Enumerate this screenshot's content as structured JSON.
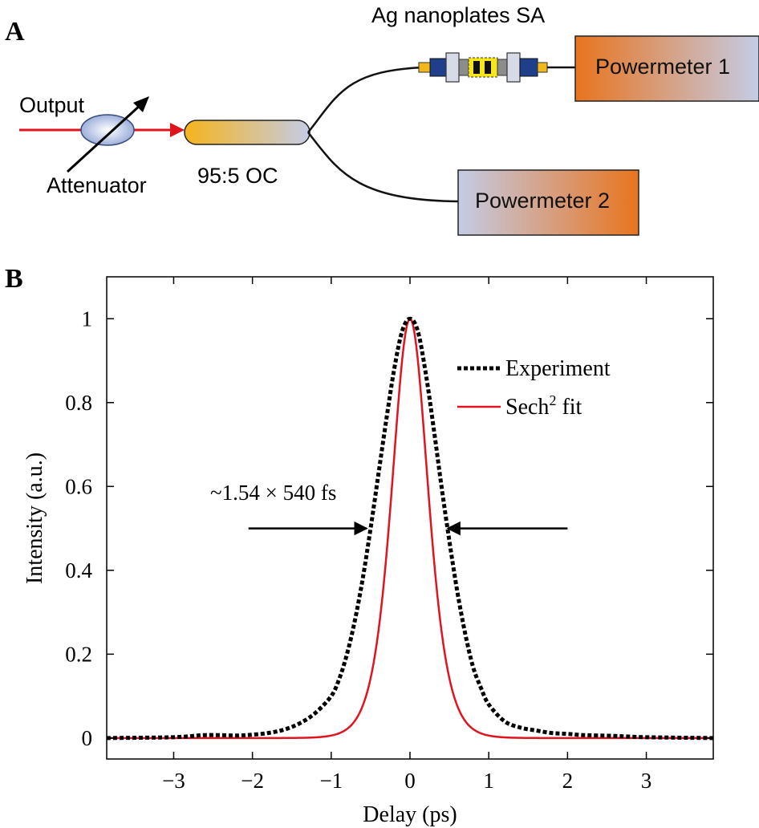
{
  "panel_a": {
    "letter": "A",
    "output_label": "Output",
    "attenuator_label": "Attenuator",
    "coupler_label": "95:5 OC",
    "sa_label": "Ag nanoplates SA",
    "powermeter1_label": "Powermeter 1",
    "powermeter2_label": "Powermeter 2",
    "colors": {
      "laser_line": "#e0141e",
      "fiber": "#111111",
      "orange": "#e8741e",
      "lavender": "#c4cce6",
      "coupler_gold": "#f6b41c"
    }
  },
  "panel_b": {
    "letter": "B"
  },
  "chart_data": {
    "type": "line",
    "xlabel": "Delay (ps)",
    "ylabel": "Intensity (a.u.)",
    "xlim": [
      -3.85,
      3.85
    ],
    "ylim": [
      -0.05,
      1.1
    ],
    "xticks": [
      -3,
      -2,
      -1,
      0,
      1,
      2,
      3
    ],
    "xtick_labels": [
      "−3",
      "−2",
      "−1",
      "0",
      "1",
      "2",
      "3"
    ],
    "yticks": [
      0,
      0.2,
      0.4,
      0.6,
      0.8,
      1
    ],
    "ytick_labels": [
      "0",
      "0.2",
      "0.4",
      "0.6",
      "0.8",
      "1"
    ],
    "legend_position": "top-right",
    "grid": false,
    "annotation": {
      "text": "~1.54 × 540 fs",
      "arrow_y": 0.5,
      "left_arrow_x": [
        -2.05,
        -0.55
      ],
      "right_arrow_x": [
        2.0,
        0.48
      ]
    },
    "series": [
      {
        "name": "Experiment",
        "style": "dotted",
        "color": "#000000",
        "x": [
          -3.85,
          -3.0,
          -2.6,
          -2.2,
          -2.0,
          -1.8,
          -1.6,
          -1.4,
          -1.2,
          -1.0,
          -0.9,
          -0.8,
          -0.7,
          -0.6,
          -0.5,
          -0.4,
          -0.3,
          -0.2,
          -0.1,
          0.0,
          0.1,
          0.2,
          0.3,
          0.4,
          0.5,
          0.6,
          0.7,
          0.8,
          0.9,
          1.0,
          1.2,
          1.4,
          1.6,
          1.8,
          2.0,
          2.2,
          2.6,
          3.0,
          3.85
        ],
        "y": [
          0.0,
          0.002,
          0.007,
          0.006,
          0.008,
          0.012,
          0.02,
          0.035,
          0.06,
          0.1,
          0.14,
          0.2,
          0.28,
          0.38,
          0.5,
          0.63,
          0.76,
          0.88,
          0.97,
          1.0,
          0.97,
          0.87,
          0.74,
          0.6,
          0.47,
          0.35,
          0.25,
          0.17,
          0.12,
          0.08,
          0.04,
          0.025,
          0.018,
          0.012,
          0.01,
          0.007,
          0.005,
          0.002,
          0.0
        ]
      },
      {
        "name": "Sech",
        "name_superscript": "2",
        "name_suffix": " fit",
        "style": "solid",
        "color": "#e0141e",
        "function": "sech2",
        "tau": 0.3068,
        "x_range": [
          -3.85,
          3.85
        ]
      }
    ]
  }
}
